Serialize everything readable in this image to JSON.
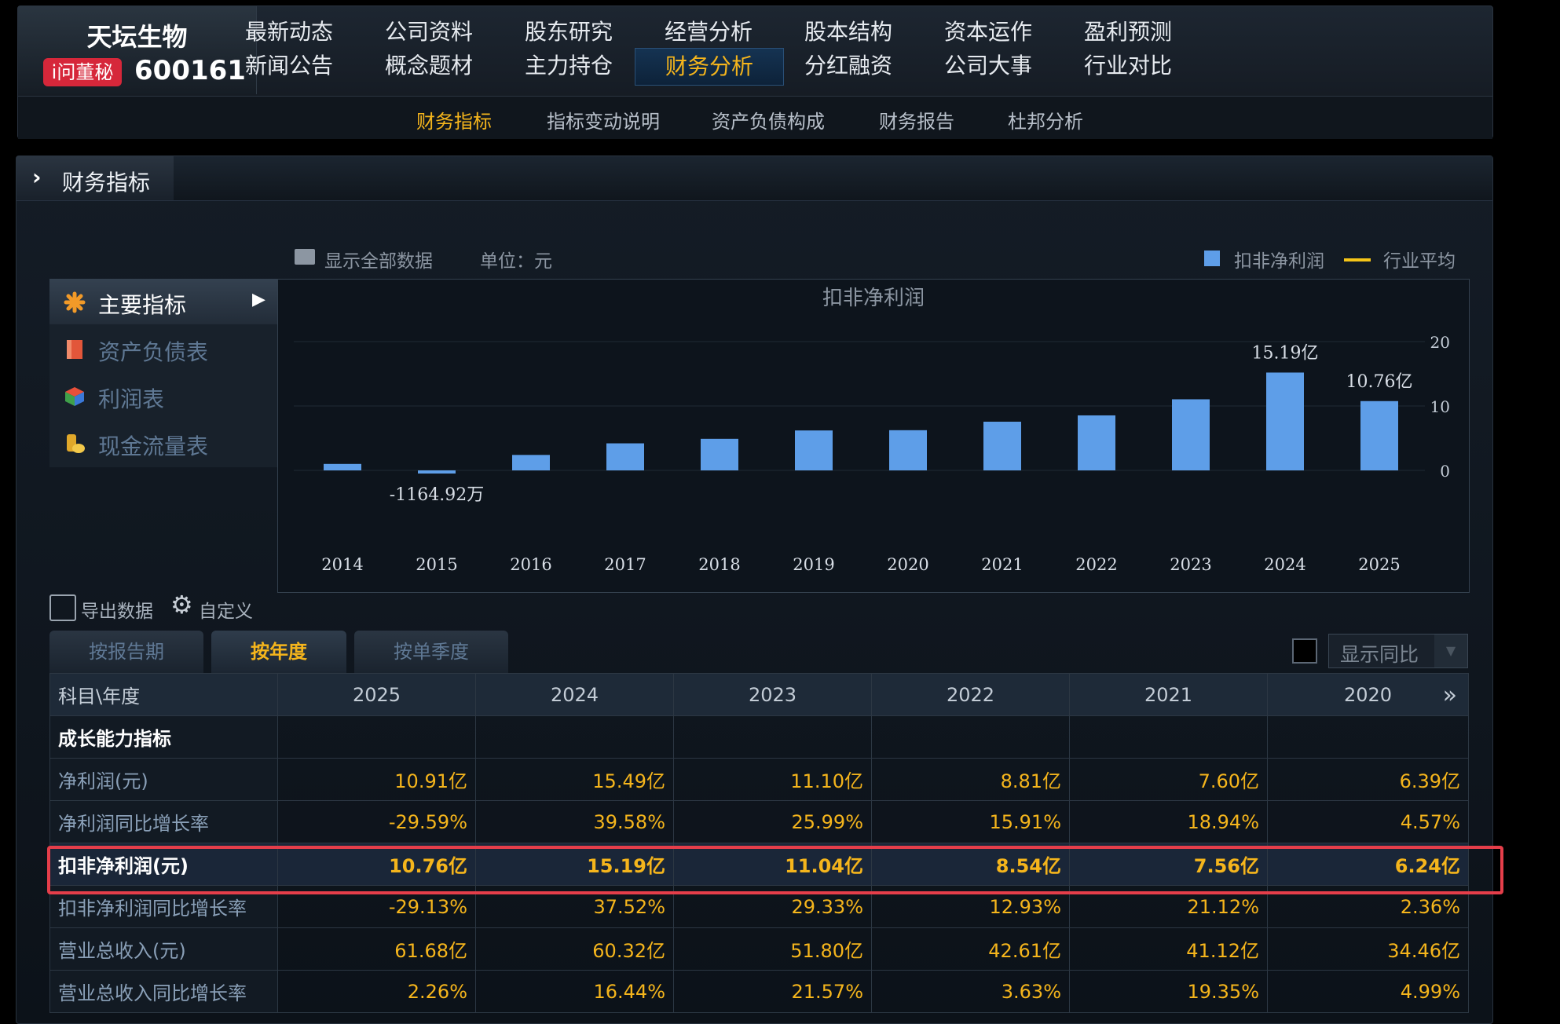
{
  "header": {
    "company": "天坛生物",
    "badge": "i问董秘",
    "code": "600161",
    "nav_row1": [
      "最新动态",
      "公司资料",
      "股东研究",
      "经营分析",
      "股本结构",
      "资本运作",
      "盈利预测"
    ],
    "nav_row2": [
      "新闻公告",
      "概念题材",
      "主力持仓",
      "财务分析",
      "分红融资",
      "公司大事",
      "行业对比"
    ],
    "active_nav": "财务分析",
    "subnav": [
      "财务指标",
      "指标变动说明",
      "资产负债构成",
      "财务报告",
      "杜邦分析"
    ]
  },
  "panel": {
    "title": "财务指标",
    "show_all": "显示全部数据",
    "unit": "单位：元",
    "legend_bar": "扣非净利润",
    "legend_line": "行业平均"
  },
  "side_menu": [
    {
      "label": "主要指标",
      "icon": "asterisk-icon"
    },
    {
      "label": "资产负债表",
      "icon": "document-icon"
    },
    {
      "label": "利润表",
      "icon": "cube-icon"
    },
    {
      "label": "现金流量表",
      "icon": "coins-icon"
    }
  ],
  "chart_data": {
    "type": "bar",
    "title": "扣非净利润",
    "categories": [
      "2014",
      "2015",
      "2016",
      "2017",
      "2018",
      "2019",
      "2020",
      "2021",
      "2022",
      "2023",
      "2024",
      "2025"
    ],
    "values": [
      1.0,
      -0.1165,
      2.4,
      4.2,
      4.9,
      6.2,
      6.24,
      7.56,
      8.54,
      11.04,
      15.19,
      10.76
    ],
    "value_unit": "亿",
    "data_labels": {
      "1": "-1164.92万",
      "10": "15.19亿",
      "11": "10.76亿"
    },
    "yticks": [
      "20",
      "10",
      "0"
    ],
    "ylim": [
      -2,
      20
    ],
    "series_color": "#5e9ee8"
  },
  "controls": {
    "export": "导出数据",
    "customize": "自定义",
    "tabs": [
      "按报告期",
      "按年度",
      "按单季度"
    ],
    "active_tab": "按年度",
    "compare": "显示同比"
  },
  "table": {
    "corner": "科目\\年度",
    "years": [
      "2025",
      "2024",
      "2023",
      "2022",
      "2021",
      "2020"
    ],
    "rows": [
      {
        "label": "成长能力指标",
        "values": [
          "",
          "",
          "",
          "",
          "",
          ""
        ],
        "section": true
      },
      {
        "label": "净利润(元)",
        "values": [
          "10.91亿",
          "15.49亿",
          "11.10亿",
          "8.81亿",
          "7.60亿",
          "6.39亿"
        ]
      },
      {
        "label": "净利润同比增长率",
        "values": [
          "-29.59%",
          "39.58%",
          "25.99%",
          "15.91%",
          "18.94%",
          "4.57%"
        ]
      },
      {
        "label": "扣非净利润(元)",
        "values": [
          "10.76亿",
          "15.19亿",
          "11.04亿",
          "8.54亿",
          "7.56亿",
          "6.24亿"
        ],
        "highlight": true
      },
      {
        "label": "扣非净利润同比增长率",
        "values": [
          "-29.13%",
          "37.52%",
          "29.33%",
          "12.93%",
          "21.12%",
          "2.36%"
        ]
      },
      {
        "label": "营业总收入(元)",
        "values": [
          "61.68亿",
          "60.32亿",
          "51.80亿",
          "42.61亿",
          "41.12亿",
          "34.46亿"
        ]
      },
      {
        "label": "营业总收入同比增长率",
        "values": [
          "2.26%",
          "16.44%",
          "21.57%",
          "3.63%",
          "19.35%",
          "4.99%"
        ]
      }
    ]
  }
}
